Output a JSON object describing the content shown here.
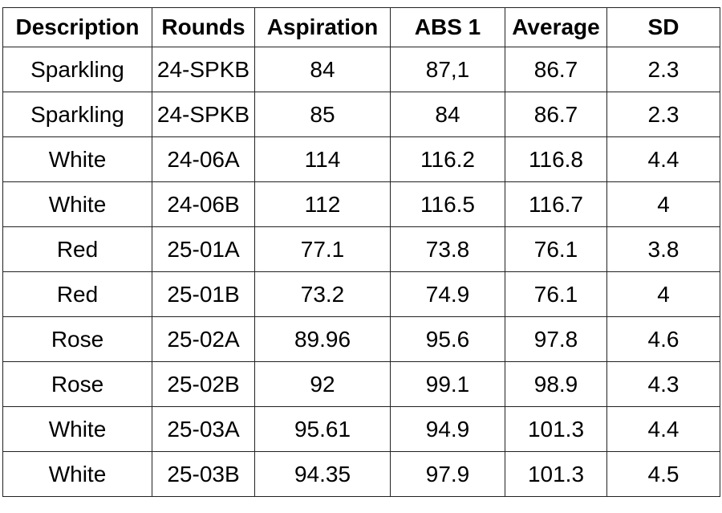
{
  "table": {
    "headers": [
      "Description",
      "Rounds",
      "Aspiration",
      "ABS 1",
      "Average",
      "SD"
    ],
    "rows": [
      [
        "Sparkling",
        "24-SPKB",
        "84",
        "87,1",
        "86.7",
        "2.3"
      ],
      [
        "Sparkling",
        "24-SPKB",
        "85",
        "84",
        "86.7",
        "2.3"
      ],
      [
        "White",
        "24-06A",
        "114",
        "116.2",
        "116.8",
        "4.4"
      ],
      [
        "White",
        "24-06B",
        "112",
        "116.5",
        "116.7",
        "4"
      ],
      [
        "Red",
        "25-01A",
        "77.1",
        "73.8",
        "76.1",
        "3.8"
      ],
      [
        "Red",
        "25-01B",
        "73.2",
        "74.9",
        "76.1",
        "4"
      ],
      [
        "Rose",
        "25-02A",
        "89.96",
        "95.6",
        "97.8",
        "4.6"
      ],
      [
        "Rose",
        "25-02B",
        "92",
        "99.1",
        "98.9",
        "4.3"
      ],
      [
        "White",
        "25-03A",
        "95.61",
        "94.9",
        "101.3",
        "4.4"
      ],
      [
        "White",
        "25-03B",
        "94.35",
        "97.9",
        "101.3",
        "4.5"
      ]
    ]
  }
}
